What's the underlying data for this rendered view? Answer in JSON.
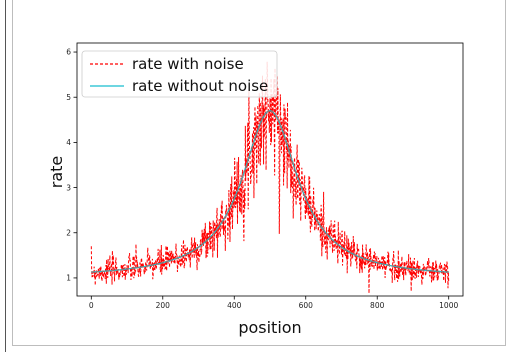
{
  "chart_data": {
    "type": "line",
    "title": "",
    "xlabel": "position",
    "ylabel": "rate",
    "xlim": [
      -40,
      1040
    ],
    "ylim": [
      0.6,
      6.2
    ],
    "xticks": [
      0,
      200,
      400,
      600,
      800,
      1000
    ],
    "yticks": [
      1,
      2,
      3,
      4,
      5,
      6
    ],
    "grid": false,
    "legend_position": "upper-left",
    "model": {
      "baseline": 1.0,
      "peak": 4.7,
      "center": 500,
      "width": 95
    },
    "noise": {
      "amplitude_fraction": 0.13,
      "samples": 1000
    },
    "series": [
      {
        "name": "rate with noise",
        "color": "#ff0000",
        "style": "dashed"
      },
      {
        "name": "rate without noise",
        "color": "#17becf",
        "style": "solid"
      }
    ],
    "overlay_color": "#808080"
  }
}
